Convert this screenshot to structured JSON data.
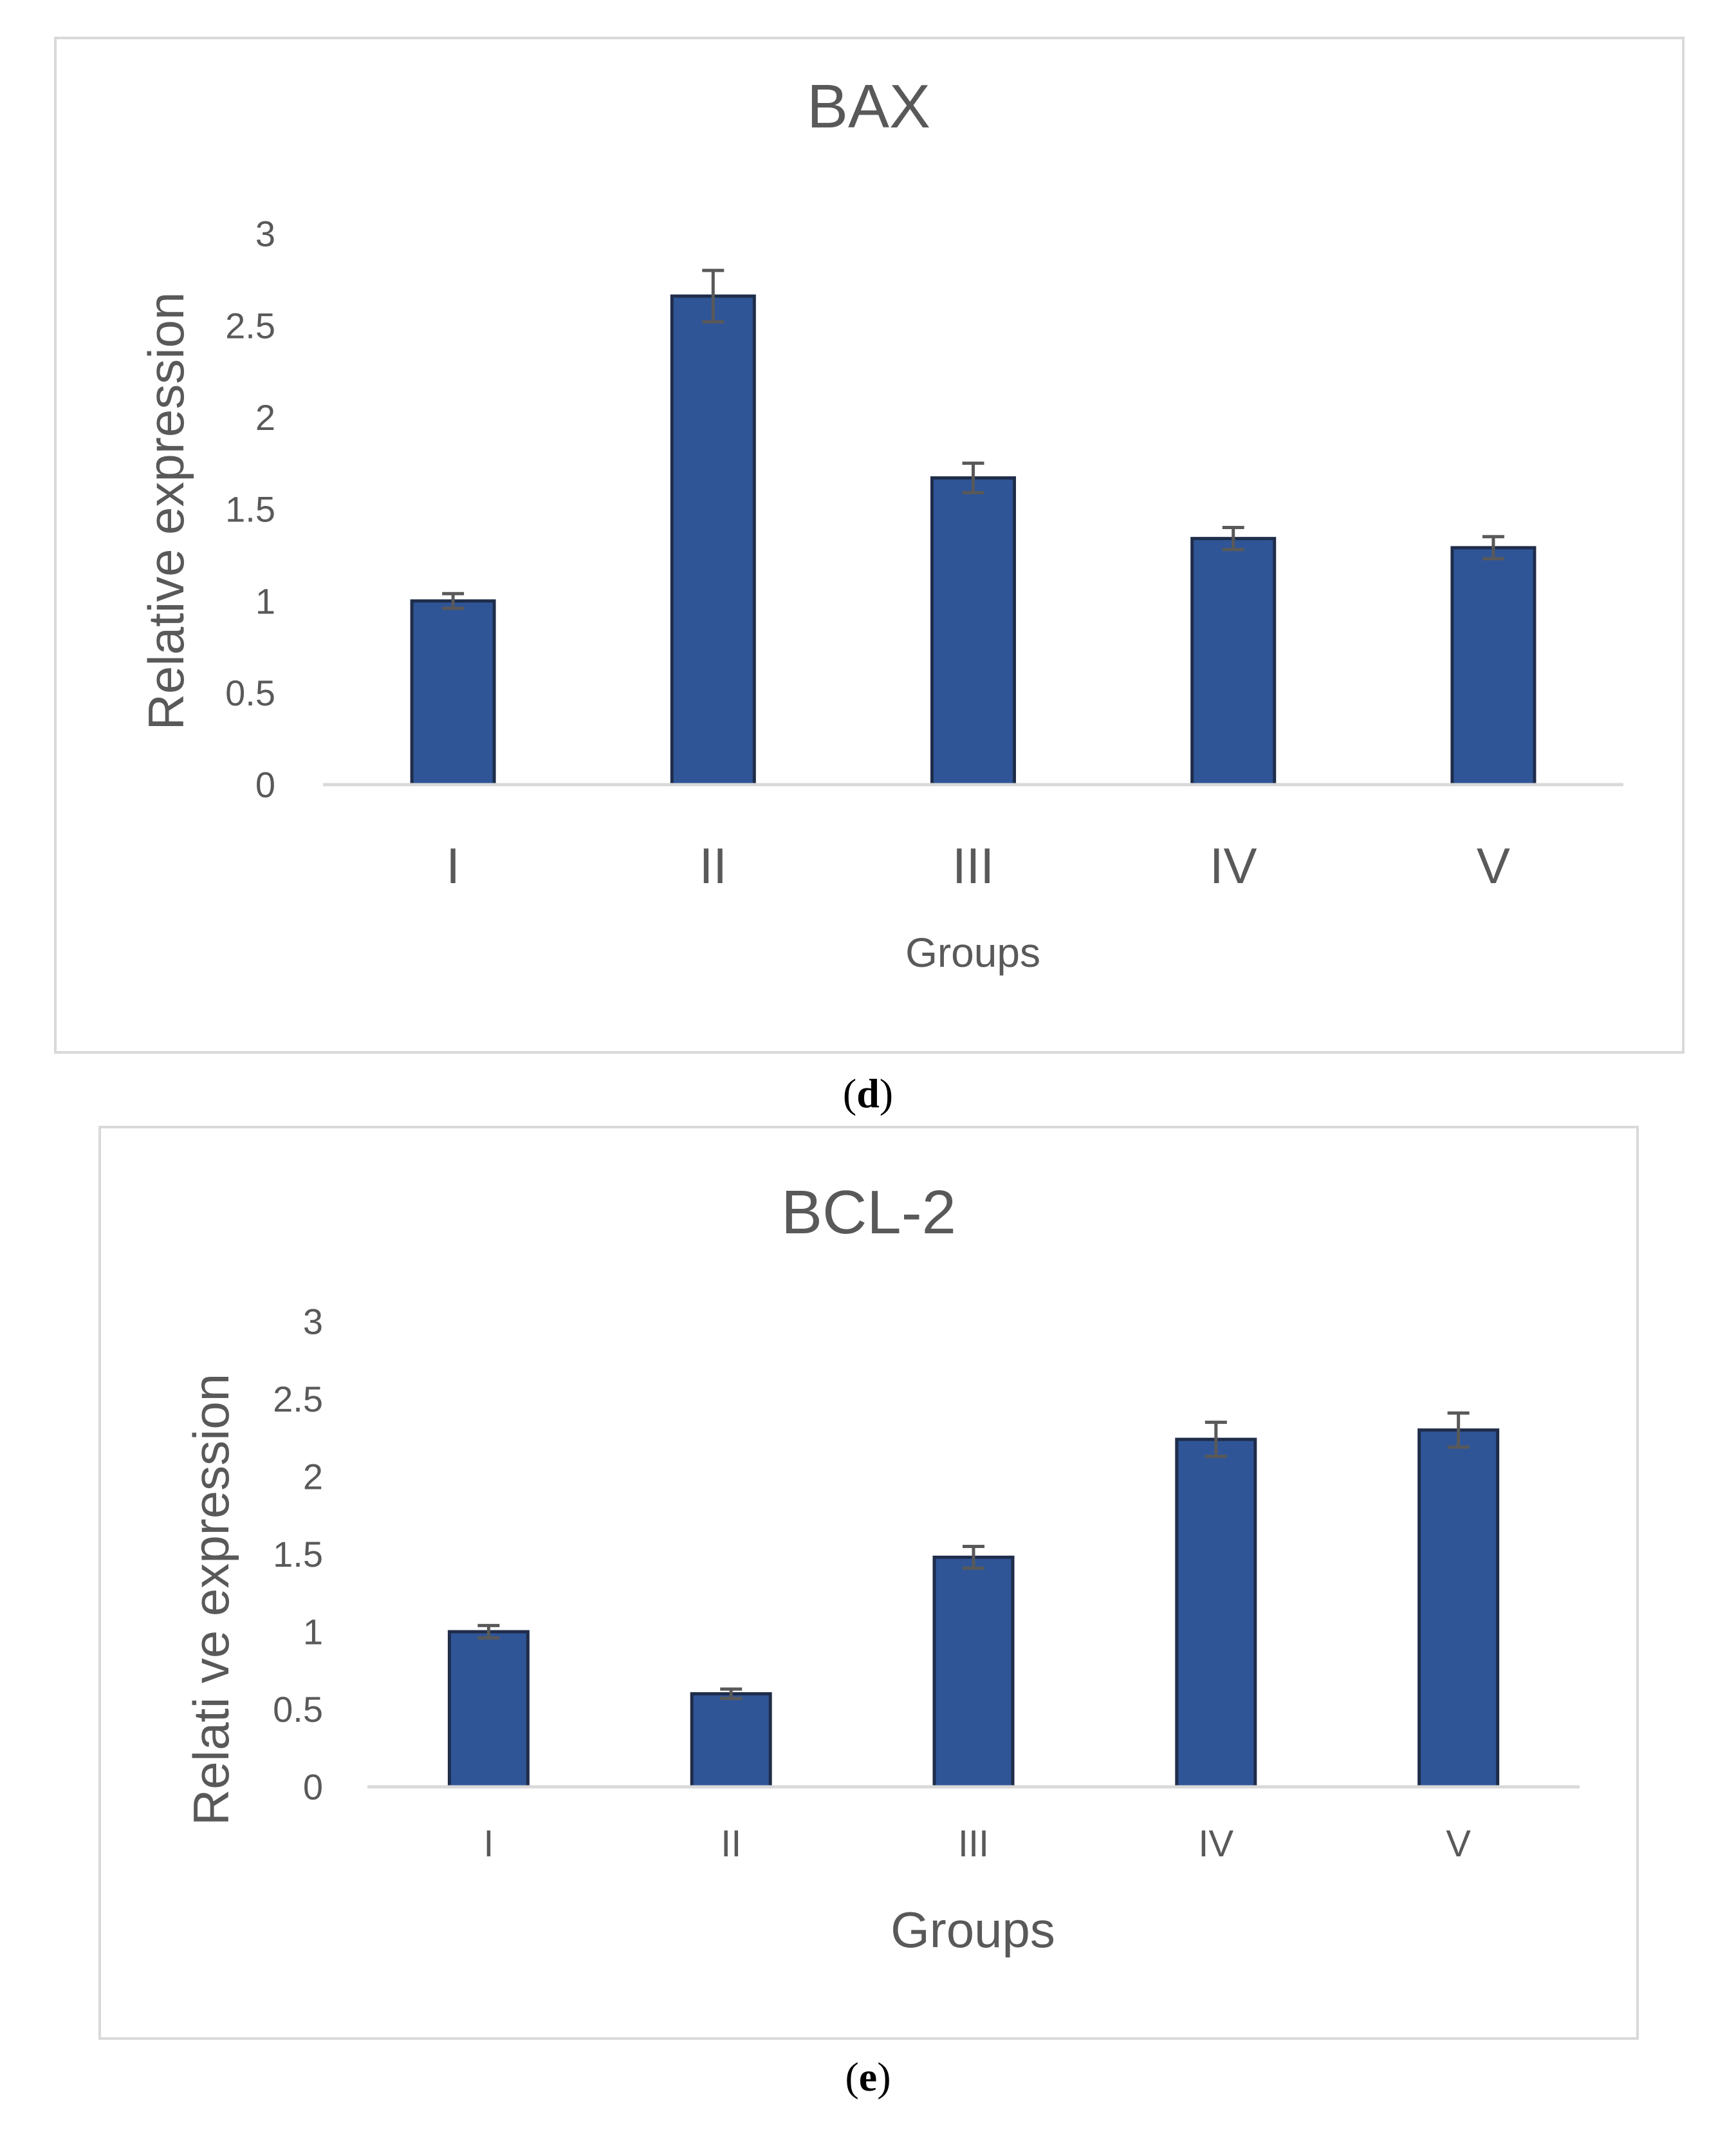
{
  "chart_data": [
    {
      "type": "bar",
      "title": "BAX",
      "xlabel": "Groups",
      "ylabel": "Relative expression",
      "categories": [
        "I",
        "II",
        "III",
        "IV",
        "V"
      ],
      "values": [
        1.0,
        2.66,
        1.67,
        1.34,
        1.29
      ],
      "errors": [
        0.04,
        0.14,
        0.08,
        0.06,
        0.06
      ],
      "ylim": [
        0,
        3
      ],
      "yticks": [
        "0",
        "0.5",
        "1",
        "1.5",
        "2",
        "2.5",
        "3"
      ],
      "color": "#2F5597",
      "grid": false,
      "caption_label": "d"
    },
    {
      "type": "bar",
      "title": "BCL-2",
      "xlabel": "Groups",
      "ylabel": "Relati ve expression",
      "categories": [
        "I",
        "II",
        "III",
        "IV",
        "V"
      ],
      "values": [
        1.0,
        0.6,
        1.48,
        2.24,
        2.3
      ],
      "errors": [
        0.04,
        0.03,
        0.07,
        0.11,
        0.11
      ],
      "ylim": [
        0,
        3
      ],
      "yticks": [
        "0",
        "0.5",
        "1",
        "1.5",
        "2",
        "2.5",
        "3"
      ],
      "color": "#2F5597",
      "grid": false,
      "caption_label": "e"
    }
  ],
  "colors": {
    "bar": "#2F5597",
    "bar_outline": "#1F2D4A",
    "text": "#595959",
    "axis": "#D9D9D9",
    "frame": "#D9D9D9",
    "error_bar": "#595959"
  }
}
